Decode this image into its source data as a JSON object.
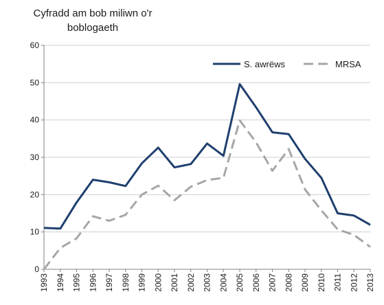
{
  "chart_data": {
    "type": "line",
    "ylabel": "Cyfradd am bob miliwn o'r\nboblogaeth",
    "ylim": [
      0,
      60
    ],
    "yticks": [
      "0",
      "10",
      "20",
      "30",
      "40",
      "50",
      "60"
    ],
    "x": [
      "1993",
      "1994",
      "1995",
      "1996",
      "1997",
      "1998",
      "1999",
      "2000",
      "2001",
      "2002",
      "2003",
      "2004",
      "2005",
      "2006",
      "2007",
      "2008",
      "2009",
      "2010",
      "2011",
      "2012",
      "2013"
    ],
    "legend_position": "top-right",
    "grid": true,
    "series": [
      {
        "name": "S. awrëws",
        "color": "#1f3f6e",
        "style": "solid",
        "values": [
          11.1,
          10.9,
          17.9,
          24.0,
          23.3,
          22.3,
          28.4,
          32.6,
          27.3,
          28.2,
          33.7,
          30.4,
          49.6,
          43.4,
          36.7,
          36.2,
          29.6,
          24.5,
          15.0,
          14.4,
          11.9
        ]
      },
      {
        "name": "MRSA",
        "color": "#a6a6a6",
        "style": "dashed",
        "values": [
          0,
          5.7,
          8.3,
          14.2,
          13.0,
          14.6,
          20.0,
          22.4,
          18.5,
          22.1,
          23.9,
          24.5,
          39.9,
          34.0,
          26.4,
          32.2,
          21.4,
          15.8,
          10.7,
          9.2,
          6.0
        ]
      }
    ]
  }
}
